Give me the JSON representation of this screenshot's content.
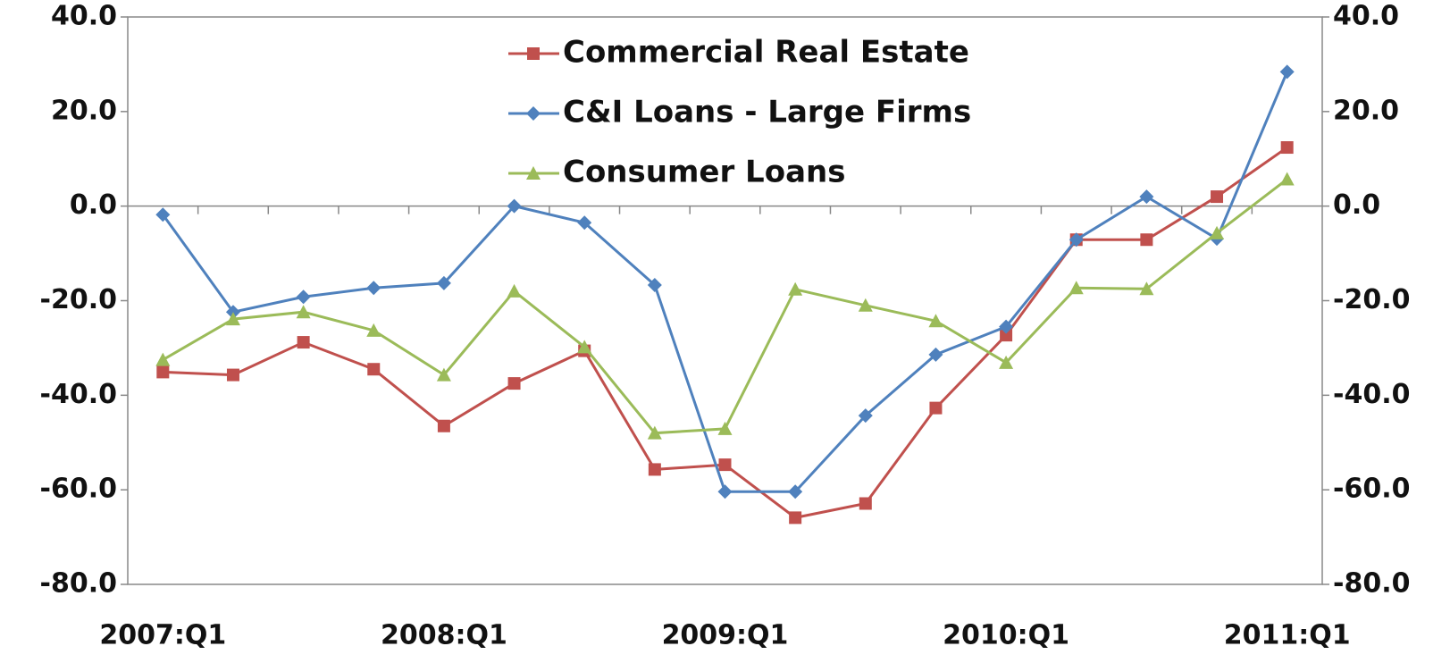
{
  "chart_data": {
    "type": "line",
    "categories": [
      "2007:Q1",
      null,
      null,
      null,
      "2008:Q1",
      null,
      null,
      null,
      "2009:Q1",
      null,
      null,
      null,
      "2010:Q1",
      null,
      null,
      null,
      "2011:Q1"
    ],
    "series": [
      {
        "name": "Commercial Real Estate",
        "color": "#c0504d",
        "marker": "square",
        "values": [
          -35.1,
          -35.7,
          -28.8,
          -34.5,
          -46.5,
          -37.5,
          -30.6,
          -55.7,
          -54.7,
          -65.9,
          -62.9,
          -42.7,
          -27.3,
          -7.1,
          -7.1,
          2.0,
          12.4
        ]
      },
      {
        "name": "C&I Loans - Large Firms",
        "color": "#4f81bd",
        "marker": "diamond",
        "values": [
          -1.8,
          -22.4,
          -19.2,
          -17.3,
          -16.3,
          0.0,
          -3.5,
          -16.7,
          -60.4,
          -60.4,
          -44.3,
          -31.4,
          -25.5,
          -7.1,
          2.0,
          -6.9,
          28.4
        ]
      },
      {
        "name": "Consumer Loans",
        "color": "#9bbb59",
        "marker": "triangle",
        "values": [
          -32.5,
          -23.9,
          -22.4,
          -26.3,
          -35.7,
          -18.0,
          -29.8,
          -48.0,
          -47.1,
          -17.6,
          -21.0,
          -24.3,
          -33.1,
          -17.3,
          -17.5,
          -5.7,
          5.7
        ]
      }
    ],
    "ylim": [
      -80,
      40
    ],
    "yticks": [
      {
        "value": -80,
        "label": "-80.0"
      },
      {
        "value": -60,
        "label": "-60.0"
      },
      {
        "value": -40,
        "label": "-40.0"
      },
      {
        "value": -20,
        "label": "-20.0"
      },
      {
        "value": 0,
        "label": "0.0"
      },
      {
        "value": 20,
        "label": "20.0"
      },
      {
        "value": 40,
        "label": "40.0"
      }
    ],
    "y2lim": [
      -80,
      40
    ],
    "y2ticks": [
      {
        "value": -80,
        "label": "-80.0"
      },
      {
        "value": -60,
        "label": "-60.0"
      },
      {
        "value": -40,
        "label": "-40.0"
      },
      {
        "value": -20,
        "label": "-20.0"
      },
      {
        "value": 0,
        "label": "0.0"
      },
      {
        "value": 20,
        "label": "20.0"
      },
      {
        "value": 40,
        "label": "40.0"
      }
    ],
    "grid": false,
    "legend": "top"
  }
}
